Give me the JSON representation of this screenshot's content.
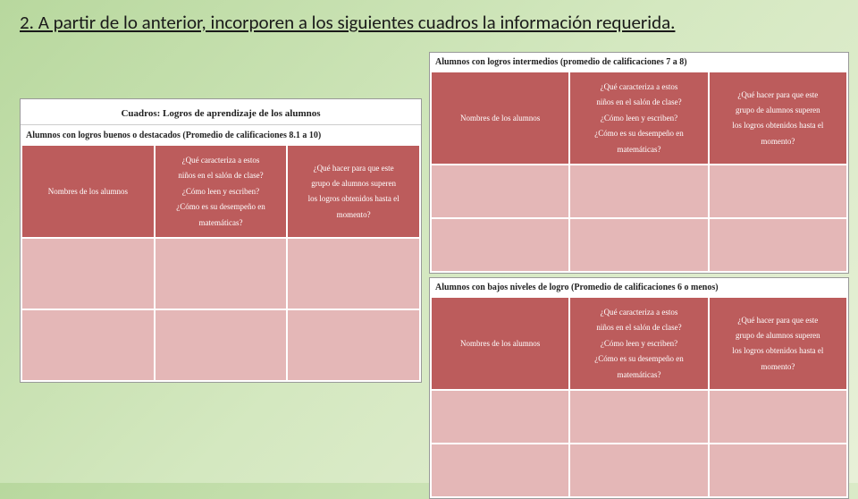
{
  "instruction": "2. A partir de lo anterior, incorporen a los siguientes cuadros la información requerida.",
  "leftTable": {
    "mainTitle": "Cuadros: Logros de aprendizaje de los alumnos",
    "subTitle": "Alumnos con logros buenos o destacados (Promedio de calificaciones 8.1 a 10)",
    "col1": "Nombres de los alumnos",
    "col2_l1": "¿Qué caracteriza a estos",
    "col2_l2": "niños en el salón de clase?",
    "col2_l3": "¿Cómo leen y escriben?",
    "col2_l4": "¿Cómo es su desempeño en",
    "col2_l5": "matemáticas?",
    "col3_l1": "¿Qué hacer para que este",
    "col3_l2": "grupo de alumnos superen",
    "col3_l3": "los logros obtenidos hasta el",
    "col3_l4": "momento?"
  },
  "rightTop": {
    "subTitle": "Alumnos con logros intermedios (promedio de calificaciones 7 a 8)",
    "col1": "Nombres de los alumnos",
    "col2_l1": "¿Qué caracteriza a estos",
    "col2_l2": "niños en el salón de clase?",
    "col2_l3": "¿Cómo leen y escriben?",
    "col2_l4": "¿Cómo es su desempeño en",
    "col2_l5": "matemáticas?",
    "col3_l1": "¿Qué hacer para que este",
    "col3_l2": "grupo de alumnos superen",
    "col3_l3": "los logros obtenidos hasta el",
    "col3_l4": "momento?"
  },
  "rightBottom": {
    "subTitle": "Alumnos con bajos niveles de logro (Promedio de calificaciones 6 o menos)",
    "col1": "Nombres de los alumnos",
    "col2_l1": "¿Qué caracteriza a estos",
    "col2_l2": "niños en el salón de clase?",
    "col2_l3": "¿Cómo leen y escriben?",
    "col2_l4": "¿Cómo es su desempeño en",
    "col2_l5": "matemáticas?",
    "col3_l1": "¿Qué hacer para que este",
    "col3_l2": "grupo de alumnos superen",
    "col3_l3": "los logros obtenidos hasta el",
    "col3_l4": "momento?"
  },
  "colors": {
    "headerDark": "#bc5c5c",
    "bodyLight": "#e4b7b7",
    "pageBgStart": "#b8d89e",
    "pageBgEnd": "#e8f0d8"
  }
}
